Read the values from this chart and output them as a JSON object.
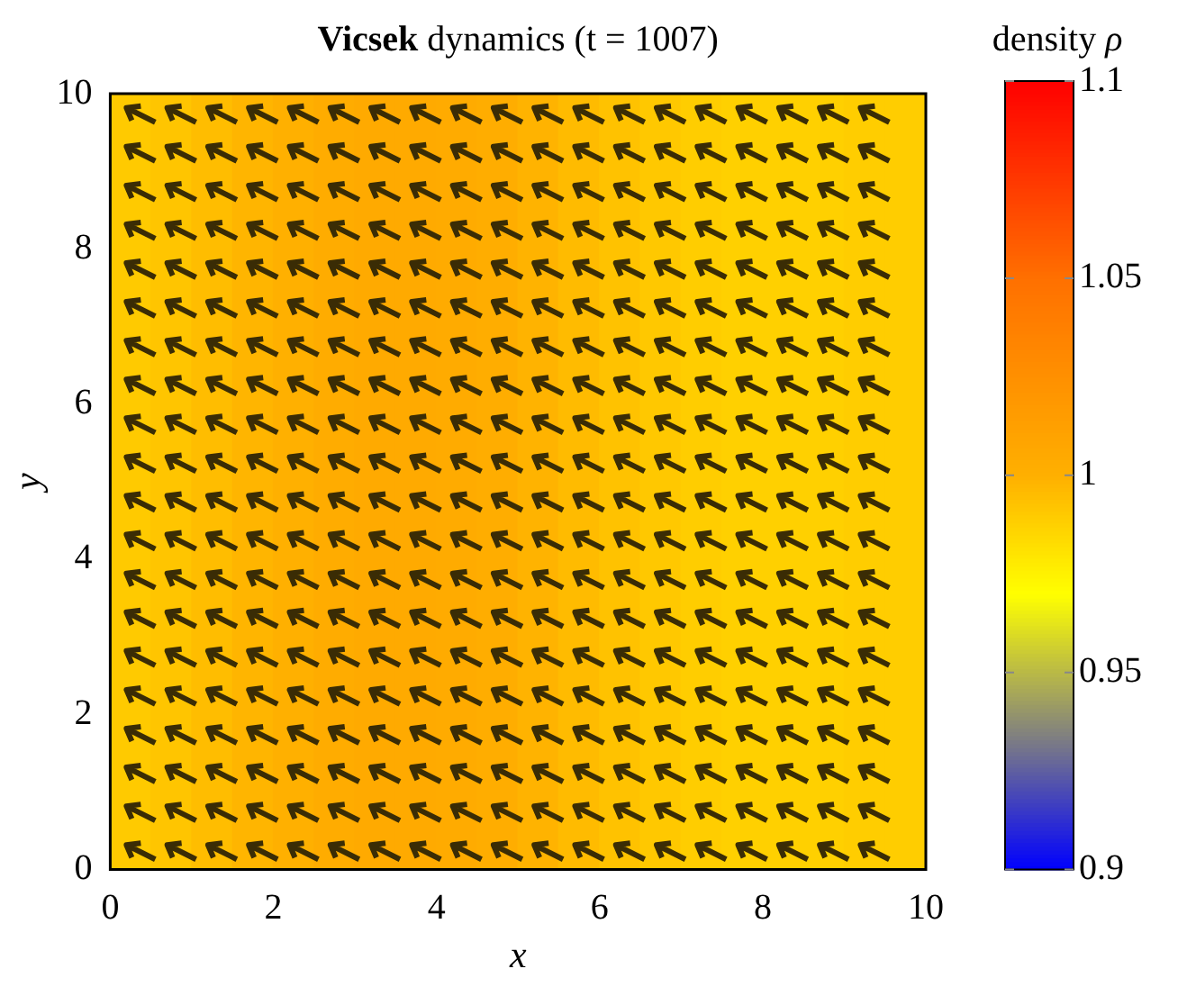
{
  "chart_data": {
    "type": "heatmap",
    "title": "Vicsek dynamics (t = 1007)",
    "xlabel": "x",
    "ylabel": "y",
    "clabel": "density ρ",
    "x": [
      0.25,
      0.75,
      1.25,
      1.75,
      2.25,
      2.75,
      3.25,
      3.75,
      4.25,
      4.75,
      5.25,
      5.75,
      6.25,
      6.75,
      7.25,
      7.75,
      8.25,
      8.75,
      9.25,
      9.75
    ],
    "cells": [
      [
        0.99,
        0.992,
        0.995,
        0.998,
        1.0,
        1.003,
        1.005,
        1.005,
        1.004,
        1.002,
        0.999,
        0.996,
        0.993,
        0.991,
        0.989,
        0.988,
        0.988,
        0.988,
        0.989,
        0.989
      ]
    ],
    "xlim": [
      0,
      10
    ],
    "xticks": [
      0,
      2,
      4,
      6,
      8,
      10
    ],
    "ylim": [
      0,
      10
    ],
    "yticks": [
      0,
      2,
      4,
      6,
      8,
      10
    ],
    "clim": [
      0.9,
      1.1
    ],
    "cticks": [
      0.9,
      0.95,
      1,
      1.05,
      1.1
    ]
  }
}
